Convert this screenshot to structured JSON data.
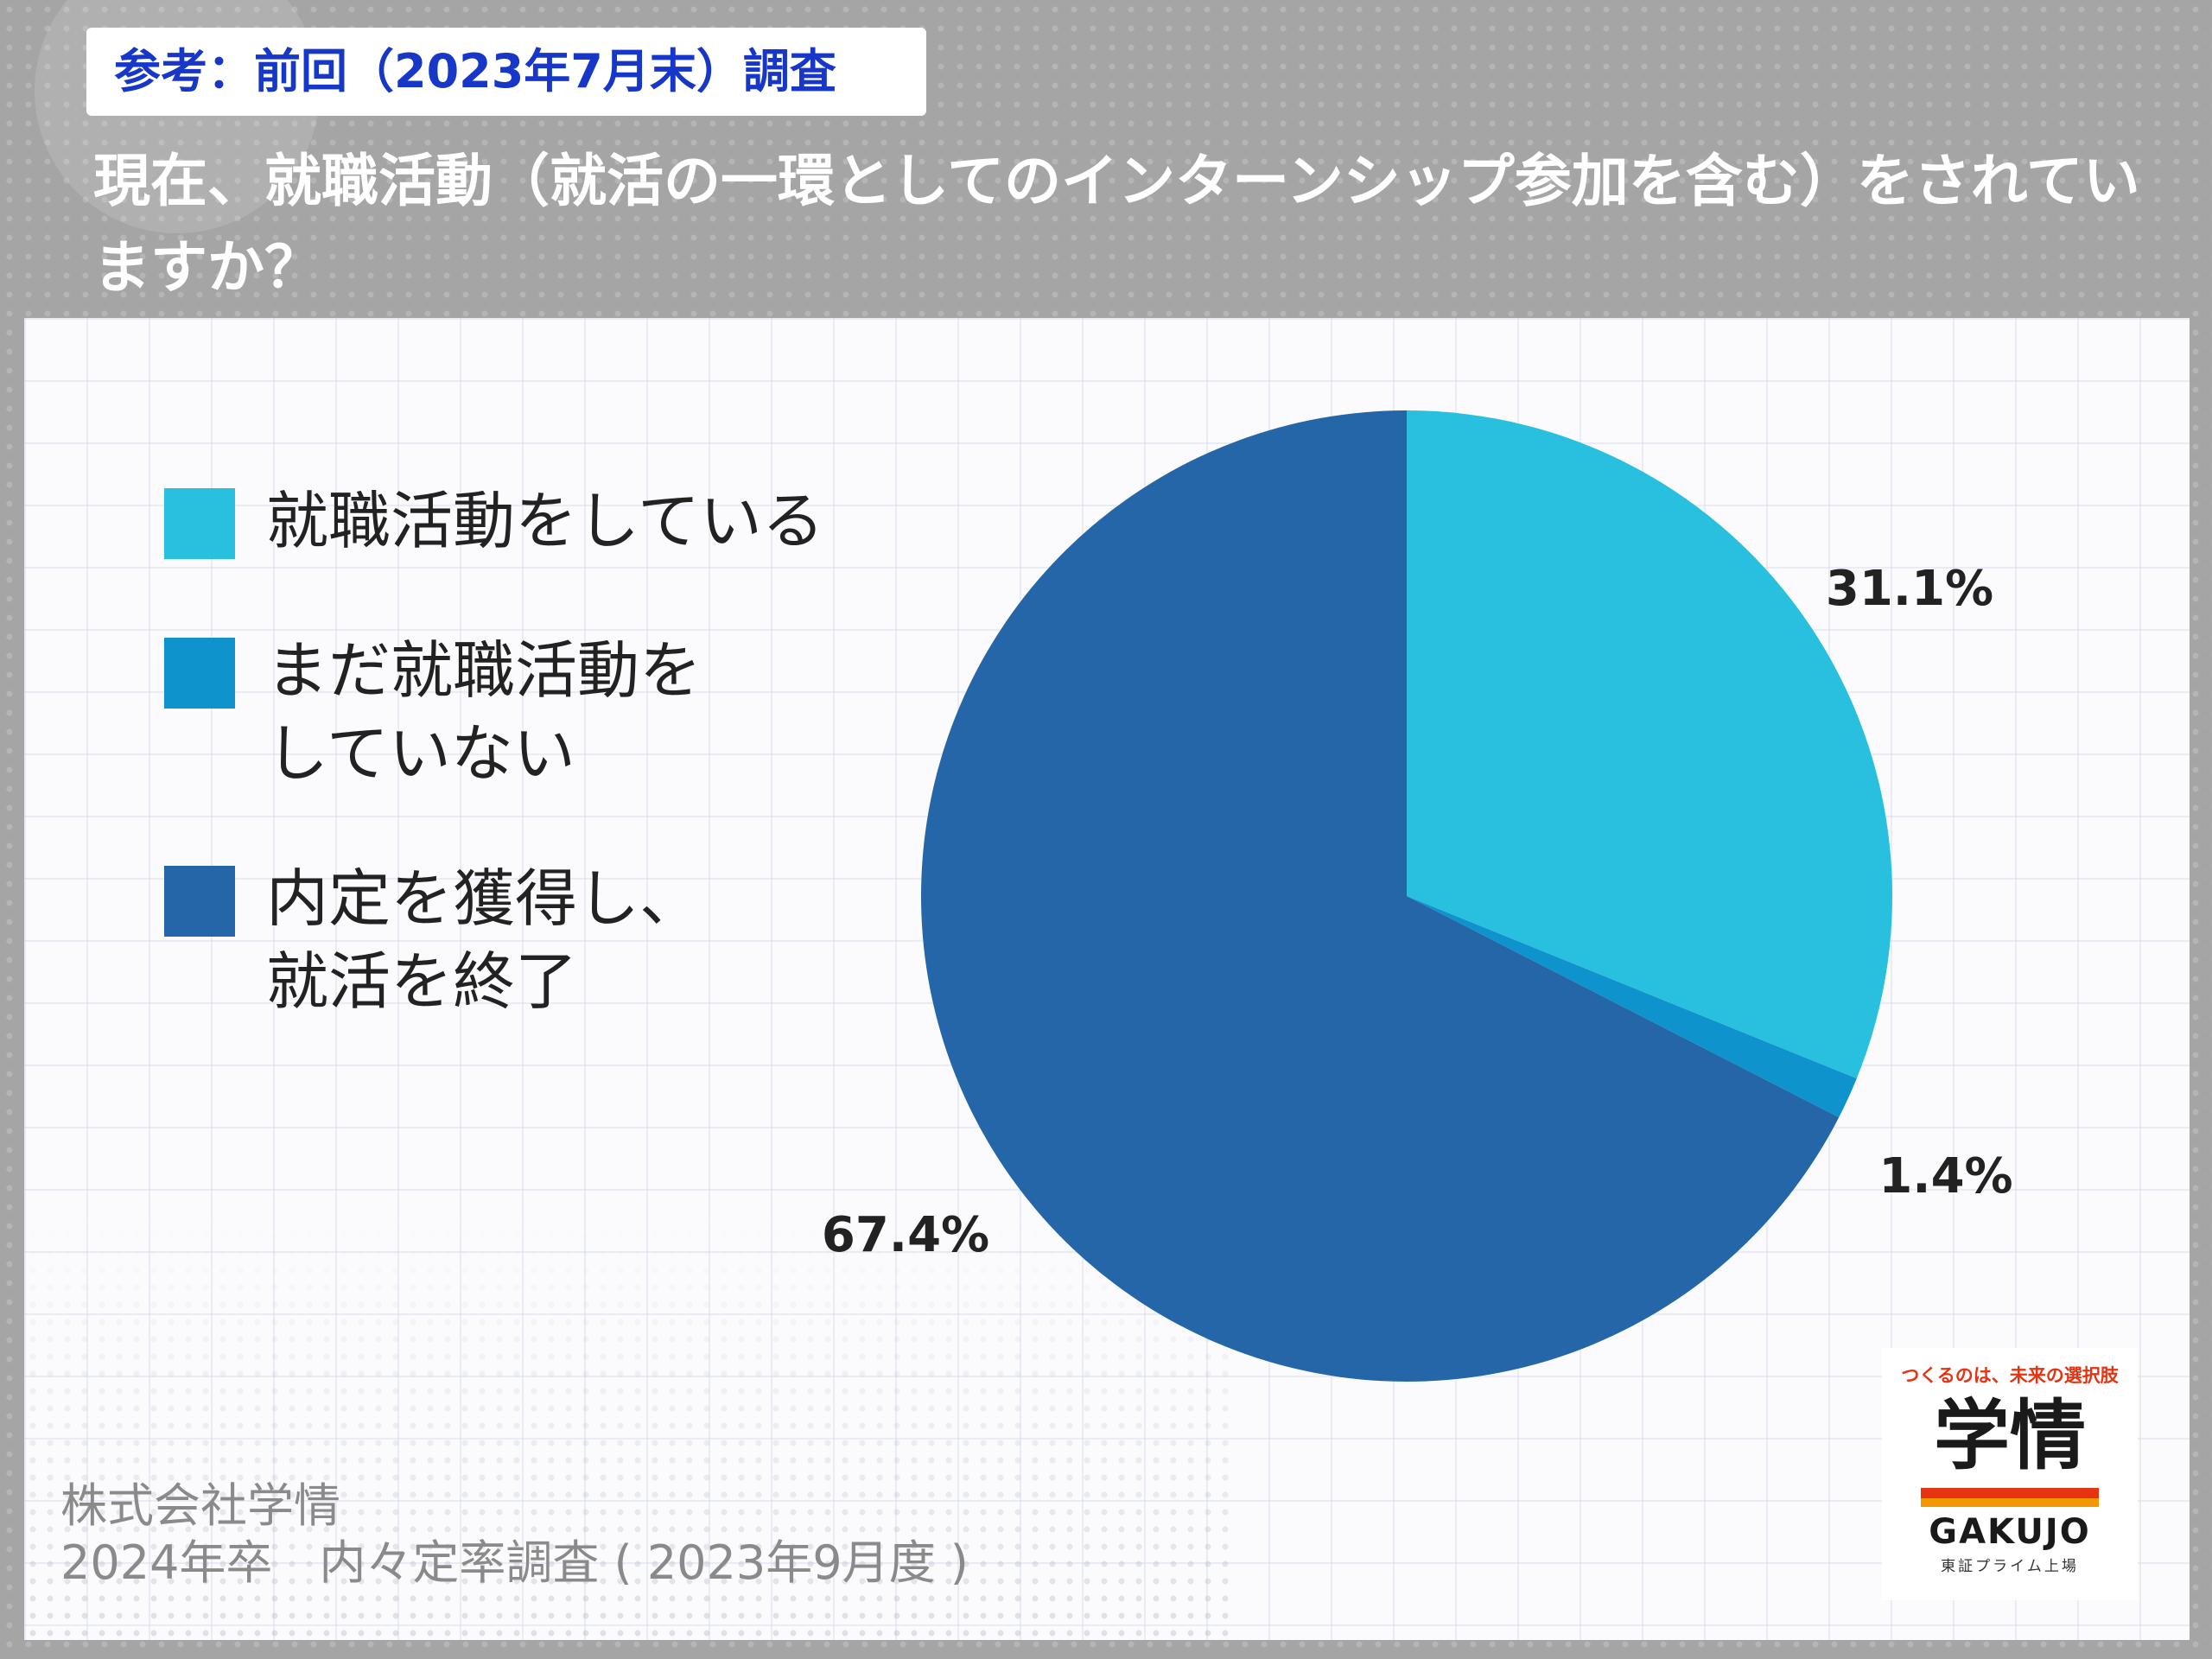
{
  "header": {
    "reference_tag": "参考：前回（2023年7月末）調査",
    "question": "現在、就職活動（就活の一環としてのインターンシップ参加を含む）をされていますか？"
  },
  "chart_data": {
    "type": "pie",
    "categories": [
      "就職活動をしている",
      "まだ就職活動をしていない",
      "内定を獲得し、就活を終了"
    ],
    "values": [
      31.1,
      1.4,
      67.4
    ],
    "labels": [
      "31.1%",
      "1.4%",
      "67.4%"
    ],
    "colors": [
      "#29c0e0",
      "#0f93cd",
      "#2566a8"
    ],
    "legend_position": "left",
    "start_angle_deg": 0,
    "direction": "clockwise"
  },
  "legend": {
    "items": [
      {
        "label": "就職活動をしている",
        "color": "#29c0e0"
      },
      {
        "label": "まだ就職活動を\nしていない",
        "color": "#0f93cd"
      },
      {
        "label": "内定を獲得し、\n就活を終了",
        "color": "#2566a8"
      }
    ]
  },
  "footer": {
    "company": "株式会社学情",
    "survey": "2024年卒　内々定率調査 ( 2023年9月度 )"
  },
  "logo": {
    "tagline": "つくるのは、未来の選択肢",
    "mark": "学情",
    "name": "GAKUJO",
    "sub": "東証プライム上場"
  }
}
